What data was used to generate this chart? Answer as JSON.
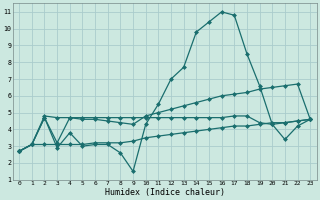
{
  "xlabel": "Humidex (Indice chaleur)",
  "bg_color": "#cce8e0",
  "grid_color": "#aacccc",
  "line_color": "#1a6e6e",
  "xlim": [
    -0.5,
    23.5
  ],
  "ylim": [
    1,
    11.5
  ],
  "xticks": [
    0,
    1,
    2,
    3,
    4,
    5,
    6,
    7,
    8,
    9,
    10,
    11,
    12,
    13,
    14,
    15,
    16,
    17,
    18,
    19,
    20,
    21,
    22,
    23
  ],
  "yticks": [
    1,
    2,
    3,
    4,
    5,
    6,
    7,
    8,
    9,
    10,
    11
  ],
  "line1_x": [
    0,
    1,
    2,
    3,
    4,
    5,
    6,
    7,
    8,
    9,
    10,
    11,
    12,
    13,
    14,
    15,
    16,
    17,
    18,
    19,
    20,
    21,
    22,
    23
  ],
  "line1_y": [
    2.7,
    3.1,
    4.7,
    2.9,
    3.8,
    3.0,
    3.1,
    3.1,
    2.6,
    1.5,
    4.3,
    5.5,
    7.0,
    7.7,
    9.8,
    10.4,
    11.0,
    10.8,
    8.5,
    6.6,
    4.3,
    3.4,
    4.2,
    4.6
  ],
  "line2_x": [
    0,
    1,
    2,
    3,
    4,
    5,
    6,
    7,
    8,
    9,
    10,
    11,
    12,
    13,
    14,
    15,
    16,
    17,
    18,
    19,
    20,
    21,
    22,
    23
  ],
  "line2_y": [
    2.7,
    3.1,
    4.7,
    3.2,
    4.7,
    4.6,
    4.6,
    4.5,
    4.4,
    4.3,
    4.8,
    5.0,
    5.2,
    5.4,
    5.6,
    5.8,
    6.0,
    6.1,
    6.2,
    6.4,
    6.5,
    6.6,
    6.7,
    4.6
  ],
  "line3_x": [
    0,
    1,
    2,
    3,
    4,
    5,
    6,
    7,
    8,
    9,
    10,
    11,
    12,
    13,
    14,
    15,
    16,
    17,
    18,
    19,
    20,
    21,
    22,
    23
  ],
  "line3_y": [
    2.7,
    3.1,
    4.8,
    4.7,
    4.7,
    4.7,
    4.7,
    4.7,
    4.7,
    4.7,
    4.7,
    4.7,
    4.7,
    4.7,
    4.7,
    4.7,
    4.7,
    4.8,
    4.8,
    4.4,
    4.3,
    4.4,
    4.5,
    4.6
  ],
  "line4_x": [
    0,
    1,
    2,
    3,
    4,
    5,
    6,
    7,
    8,
    9,
    10,
    11,
    12,
    13,
    14,
    15,
    16,
    17,
    18,
    19,
    20,
    21,
    22,
    23
  ],
  "line4_y": [
    2.7,
    3.1,
    3.1,
    3.1,
    3.1,
    3.1,
    3.2,
    3.2,
    3.2,
    3.3,
    3.5,
    3.6,
    3.7,
    3.8,
    3.9,
    4.0,
    4.1,
    4.2,
    4.2,
    4.3,
    4.4,
    4.4,
    4.5,
    4.6
  ]
}
